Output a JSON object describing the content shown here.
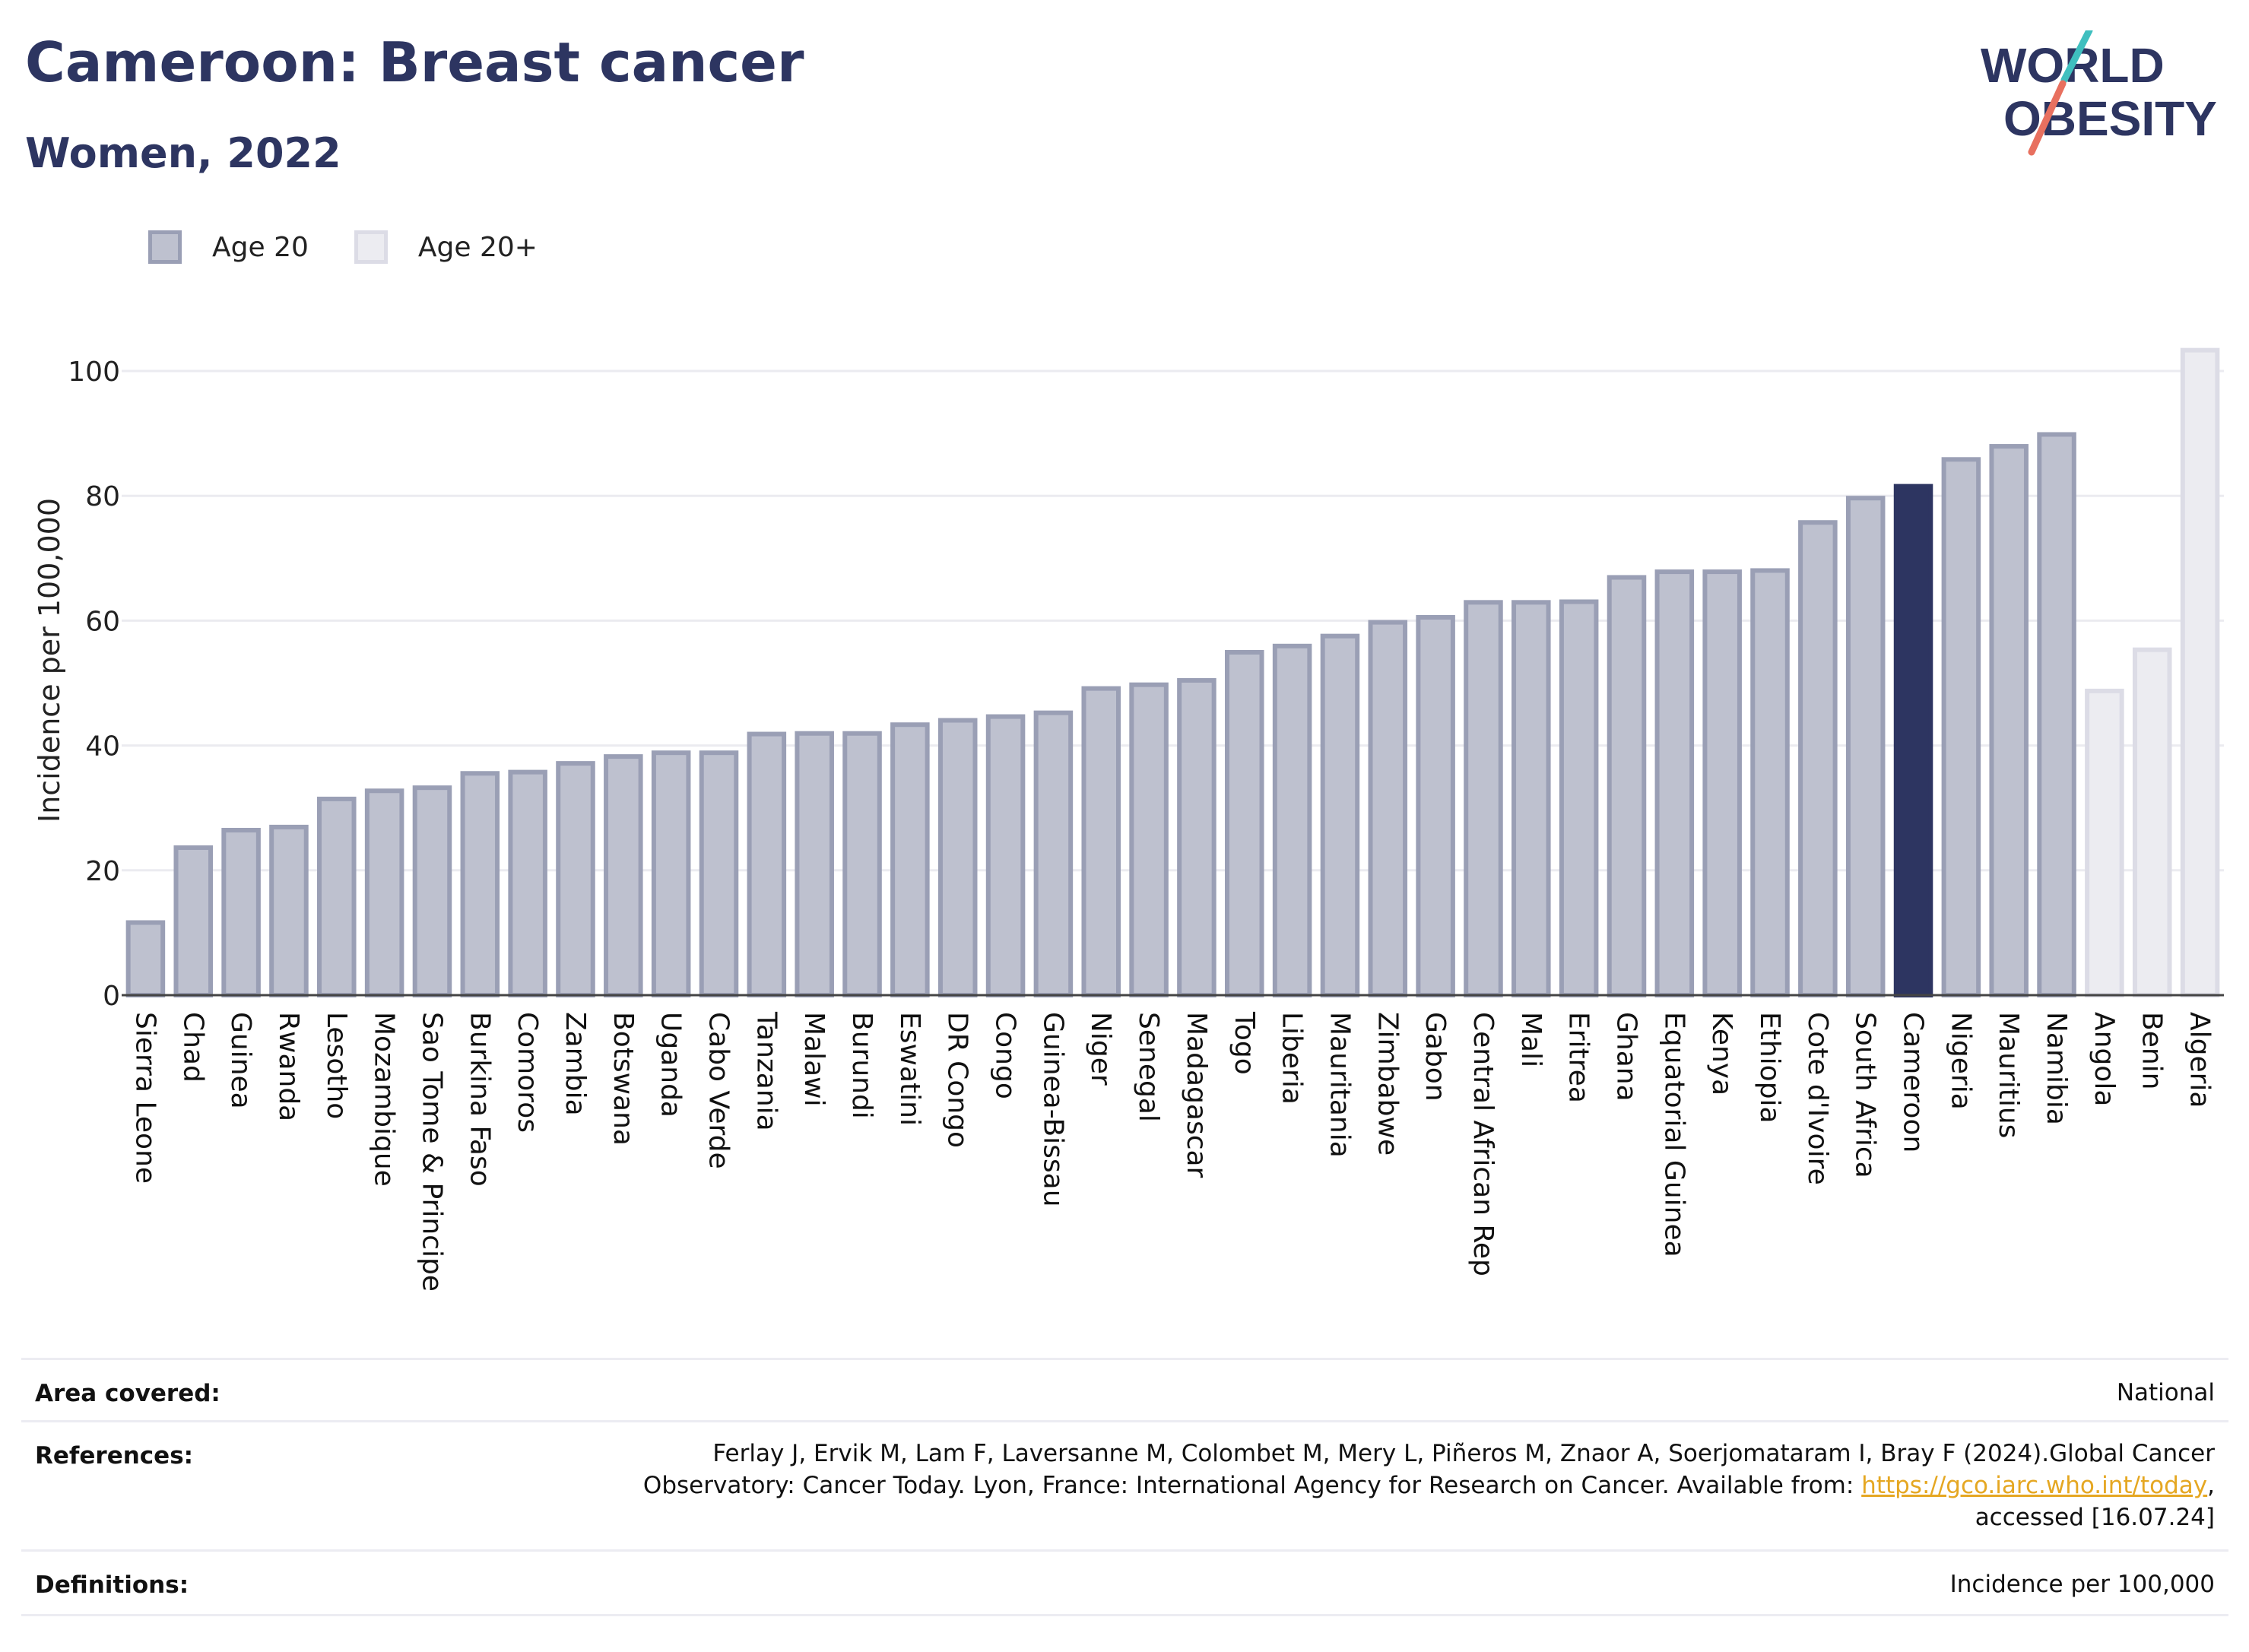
{
  "header": {
    "title": "Cameroon: Breast cancer",
    "subtitle": "Women, 2022",
    "logo_line1": "WORLD",
    "logo_line2": "OBESITY"
  },
  "legend": [
    {
      "label": "Age 20",
      "color": "#bec1cf",
      "border": "#9a9fb5"
    },
    {
      "label": "Age 20+",
      "color": "#ececf1",
      "border": "#dcdce6"
    }
  ],
  "colors": {
    "highlight": "#2d3561",
    "bar_fill": "#bec1cf",
    "bar_border": "#9a9fb5",
    "bar_light_fill": "#ececf1",
    "bar_light_border": "#dcdce6",
    "grid": "#ebebf0",
    "logo_teal": "#3fbfbf",
    "logo_coral": "#e8705f",
    "link": "#e5a722"
  },
  "chart_data": {
    "type": "bar",
    "ylabel": "Incidence per 100,000",
    "xlabel": "",
    "ylim": [
      0,
      105
    ],
    "yticks": [
      0,
      20,
      40,
      60,
      80,
      100
    ],
    "grid": true,
    "legend_position": "top-left",
    "highlight": "Cameroon",
    "categories": [
      "Sierra Leone",
      "Chad",
      "Guinea",
      "Rwanda",
      "Lesotho",
      "Mozambique",
      "Sao Tome & Principe",
      "Burkina Faso",
      "Comoros",
      "Zambia",
      "Botswana",
      "Uganda",
      "Cabo Verde",
      "Tanzania",
      "Malawi",
      "Burundi",
      "Eswatini",
      "DR Congo",
      "Congo",
      "Guinea-Bissau",
      "Niger",
      "Senegal",
      "Madagascar",
      "Togo",
      "Liberia",
      "Mauritania",
      "Zimbabwe",
      "Gabon",
      "Central African Rep",
      "Mali",
      "Eritrea",
      "Ghana",
      "Equatorial Guinea",
      "Kenya",
      "Ethiopia",
      "Cote d'Ivoire",
      "South Africa",
      "Cameroon",
      "Nigeria",
      "Mauritius",
      "Namibia",
      "Angola",
      "Benin",
      "Algeria"
    ],
    "values": [
      12,
      24,
      26.8,
      27.3,
      31.8,
      33.1,
      33.6,
      35.9,
      36.1,
      37.5,
      38.6,
      39.2,
      39.2,
      42.2,
      42.3,
      42.3,
      43.7,
      44.4,
      45,
      45.6,
      49.5,
      50.1,
      50.8,
      55.3,
      56.3,
      57.9,
      60.1,
      60.9,
      63.3,
      63.3,
      63.4,
      67.3,
      68.2,
      68.2,
      68.4,
      76.1,
      80,
      81.9,
      86.2,
      88.3,
      90.2,
      49.1,
      55.7,
      103.7
    ],
    "groups": [
      "Age 20",
      "Age 20",
      "Age 20",
      "Age 20",
      "Age 20",
      "Age 20",
      "Age 20",
      "Age 20",
      "Age 20",
      "Age 20",
      "Age 20",
      "Age 20",
      "Age 20",
      "Age 20",
      "Age 20",
      "Age 20",
      "Age 20",
      "Age 20",
      "Age 20",
      "Age 20",
      "Age 20",
      "Age 20",
      "Age 20",
      "Age 20",
      "Age 20",
      "Age 20",
      "Age 20",
      "Age 20",
      "Age 20",
      "Age 20",
      "Age 20",
      "Age 20",
      "Age 20",
      "Age 20",
      "Age 20",
      "Age 20",
      "Age 20",
      "Age 20",
      "Age 20",
      "Age 20",
      "Age 20",
      "Age 20+",
      "Age 20+",
      "Age 20+"
    ]
  },
  "footer": {
    "area_label": "Area covered:",
    "area_value": "National",
    "references_label": "References:",
    "references_line1": "Ferlay J, Ervik M, Lam F, Laversanne M, Colombet M, Mery L, Piñeros M, Znaor A, Soerjomataram I, Bray F (2024).Global Cancer",
    "references_line2": "Observatory: Cancer Today. Lyon, France: International Agency for Research on Cancer. Available from: ",
    "references_link": "https://gco.iarc.who.int/today",
    "references_line2_end": ",",
    "references_line3": "accessed [16.07.24]",
    "definitions_label": "Definitions:",
    "definitions_value": "Incidence per 100,000"
  }
}
